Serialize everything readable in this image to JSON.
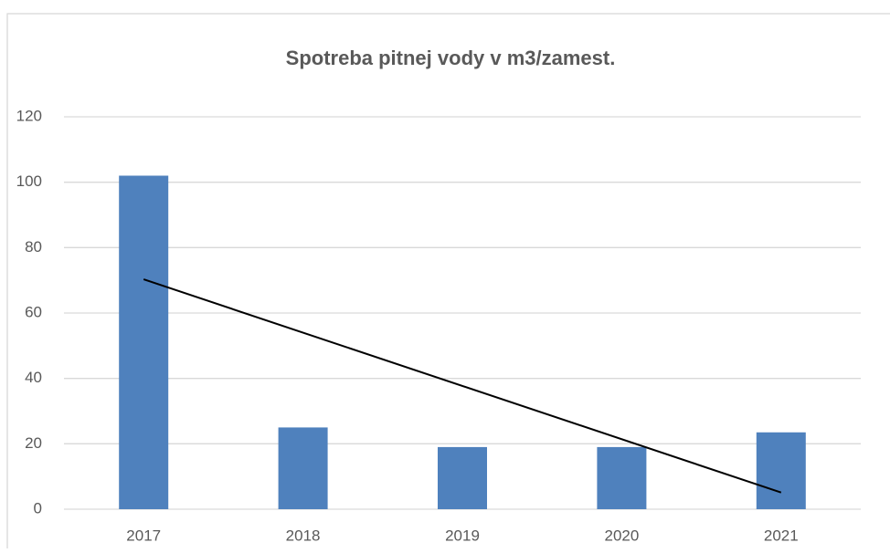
{
  "chart_data": {
    "type": "bar",
    "title": "Spotreba pitnej vody v m3/zamest.",
    "categories": [
      "2017",
      "2018",
      "2019",
      "2020",
      "2021"
    ],
    "values": [
      102,
      25,
      19,
      19,
      23.5
    ],
    "color": "#4f81bd",
    "trendline": {
      "color": "#000000",
      "values": [
        70.3,
        5.1
      ]
    },
    "ylim": [
      0,
      120
    ],
    "yticks": [
      0,
      20,
      40,
      60,
      80,
      100,
      120
    ],
    "grid": true
  }
}
